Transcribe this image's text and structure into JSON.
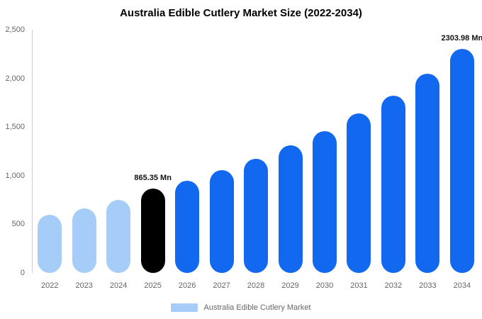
{
  "title": "Australia Edible Cutlery Market Size (2022-2034)",
  "legend": {
    "label": "Australia Edible Cutlery Market",
    "swatch_color": "#a6cdf8"
  },
  "colors": {
    "historical_bar": "#a6cdf8",
    "highlight_bar": "#000000",
    "forecast_bar": "#1268ef",
    "axis_line": "#cccccc",
    "tick_text": "#666666"
  },
  "chart_data": {
    "type": "bar",
    "title": "Australia Edible Cutlery Market Size (2022-2034)",
    "xlabel": "",
    "ylabel": "",
    "ylim": [
      0,
      2500
    ],
    "grid": false,
    "legend_position": "bottom",
    "yticks": [
      {
        "value": 0,
        "label": "0"
      },
      {
        "value": 500,
        "label": "500"
      },
      {
        "value": 1000,
        "label": "1,000"
      },
      {
        "value": 1500,
        "label": "1,500"
      },
      {
        "value": 2000,
        "label": "2,000"
      },
      {
        "value": 2500,
        "label": "2,500"
      }
    ],
    "categories": [
      "2022",
      "2023",
      "2024",
      "2025",
      "2026",
      "2027",
      "2028",
      "2029",
      "2030",
      "2031",
      "2032",
      "2033",
      "2034"
    ],
    "values": [
      600,
      665,
      750,
      865.35,
      950,
      1060,
      1170,
      1315,
      1460,
      1640,
      1825,
      2045,
      2303.98
    ],
    "bars": [
      {
        "year": "2022",
        "value": 600,
        "color": "#a6cdf8"
      },
      {
        "year": "2023",
        "value": 665,
        "color": "#a6cdf8"
      },
      {
        "year": "2024",
        "value": 750,
        "color": "#a6cdf8"
      },
      {
        "year": "2025",
        "value": 865.35,
        "color": "#000000",
        "label": "865.35 Mn"
      },
      {
        "year": "2026",
        "value": 950,
        "color": "#1268ef"
      },
      {
        "year": "2027",
        "value": 1060,
        "color": "#1268ef"
      },
      {
        "year": "2028",
        "value": 1170,
        "color": "#1268ef"
      },
      {
        "year": "2029",
        "value": 1315,
        "color": "#1268ef"
      },
      {
        "year": "2030",
        "value": 1460,
        "color": "#1268ef"
      },
      {
        "year": "2031",
        "value": 1640,
        "color": "#1268ef"
      },
      {
        "year": "2032",
        "value": 1825,
        "color": "#1268ef"
      },
      {
        "year": "2033",
        "value": 2045,
        "color": "#1268ef"
      },
      {
        "year": "2034",
        "value": 2303.98,
        "color": "#1268ef",
        "label": "2303.98 Mn"
      }
    ]
  }
}
